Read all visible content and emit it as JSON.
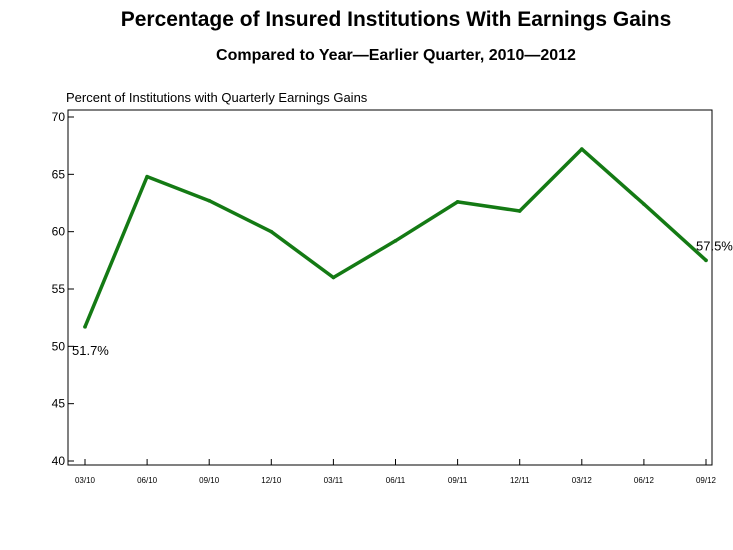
{
  "chart_data": {
    "type": "line",
    "title": "Percentage of Insured Institutions With Earnings Gains",
    "subtitle": "Compared to Year—Earlier Quarter, 2010—2012",
    "ylabel": "Percent of Institutions with Quarterly Earnings Gains",
    "xlabel": "",
    "ylim": [
      40,
      70
    ],
    "yticks": [
      "40",
      "45",
      "50",
      "55",
      "60",
      "65",
      "70"
    ],
    "categories": [
      "03/10",
      "06/10",
      "09/10",
      "12/10",
      "03/11",
      "06/11",
      "09/11",
      "12/11",
      "03/12",
      "06/12",
      "09/12"
    ],
    "series": [
      {
        "values": [
          51.7,
          64.8,
          62.7,
          60.0,
          56.0,
          59.2,
          62.6,
          61.8,
          67.2,
          62.4,
          57.5
        ],
        "color": "#147a14"
      }
    ],
    "data_labels": [
      "51.7%",
      "57.5%"
    ],
    "grid": false
  }
}
